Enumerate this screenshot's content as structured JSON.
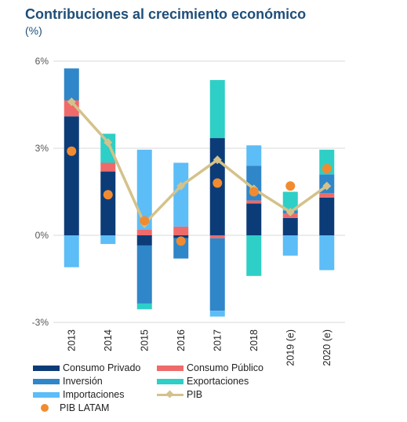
{
  "header": {
    "title": "Contribuciones al crecimiento económico",
    "subtitle": "(%)"
  },
  "chart_data": {
    "type": "bar",
    "stacked": true,
    "title": "Contribuciones al crecimiento económico",
    "subtitle": "(%)",
    "categories": [
      "2013",
      "2014",
      "2015",
      "2016",
      "2017",
      "2018",
      "2019 (e)",
      "2020 (e)"
    ],
    "ylim": [
      -3,
      6
    ],
    "yticks": [
      -3,
      0,
      3,
      6
    ],
    "ytick_labels": [
      "-3%",
      "0%",
      "3%",
      "6%"
    ],
    "grid": true,
    "legend_position": "bottom",
    "series": [
      {
        "name": "Consumo Privado",
        "kind": "bar",
        "color": "#0c3c78",
        "values": [
          4.1,
          2.2,
          -0.35,
          -0.1,
          3.35,
          1.1,
          0.6,
          1.3
        ]
      },
      {
        "name": "Consumo Público",
        "kind": "bar",
        "color": "#ef6a6a",
        "values": [
          0.55,
          0.3,
          0.2,
          0.3,
          -0.1,
          0.1,
          0.15,
          0.15
        ]
      },
      {
        "name": "Inversión",
        "kind": "bar",
        "color": "#2f86c8",
        "values": [
          1.1,
          0.0,
          -2.0,
          -0.7,
          -2.5,
          1.2,
          0.1,
          0.65
        ]
      },
      {
        "name": "Exportaciones",
        "kind": "bar",
        "color": "#2ecfc6",
        "values": [
          0.0,
          1.0,
          -0.2,
          0.0,
          2.0,
          -1.4,
          0.65,
          0.85
        ]
      },
      {
        "name": "Importaciones",
        "kind": "bar",
        "color": "#5cbdf7",
        "values": [
          -1.1,
          -0.3,
          2.75,
          2.2,
          -0.2,
          0.7,
          -0.7,
          -1.2
        ]
      },
      {
        "name": "PIB",
        "kind": "line",
        "color": "#d4c28a",
        "values": [
          4.6,
          3.2,
          0.4,
          1.7,
          2.6,
          1.6,
          0.8,
          1.7
        ]
      },
      {
        "name": "PIB LATAM",
        "kind": "dot",
        "color": "#f28b30",
        "values": [
          2.9,
          1.4,
          0.5,
          -0.2,
          1.8,
          1.5,
          1.7,
          2.3
        ]
      }
    ]
  },
  "legend": {
    "consumo_privado": "Consumo Privado",
    "consumo_publico": "Consumo Público",
    "inversion": "Inversión",
    "exportaciones": "Exportaciones",
    "importaciones": "Importaciones",
    "pib": "PIB",
    "pib_latam": "PIB LATAM"
  }
}
